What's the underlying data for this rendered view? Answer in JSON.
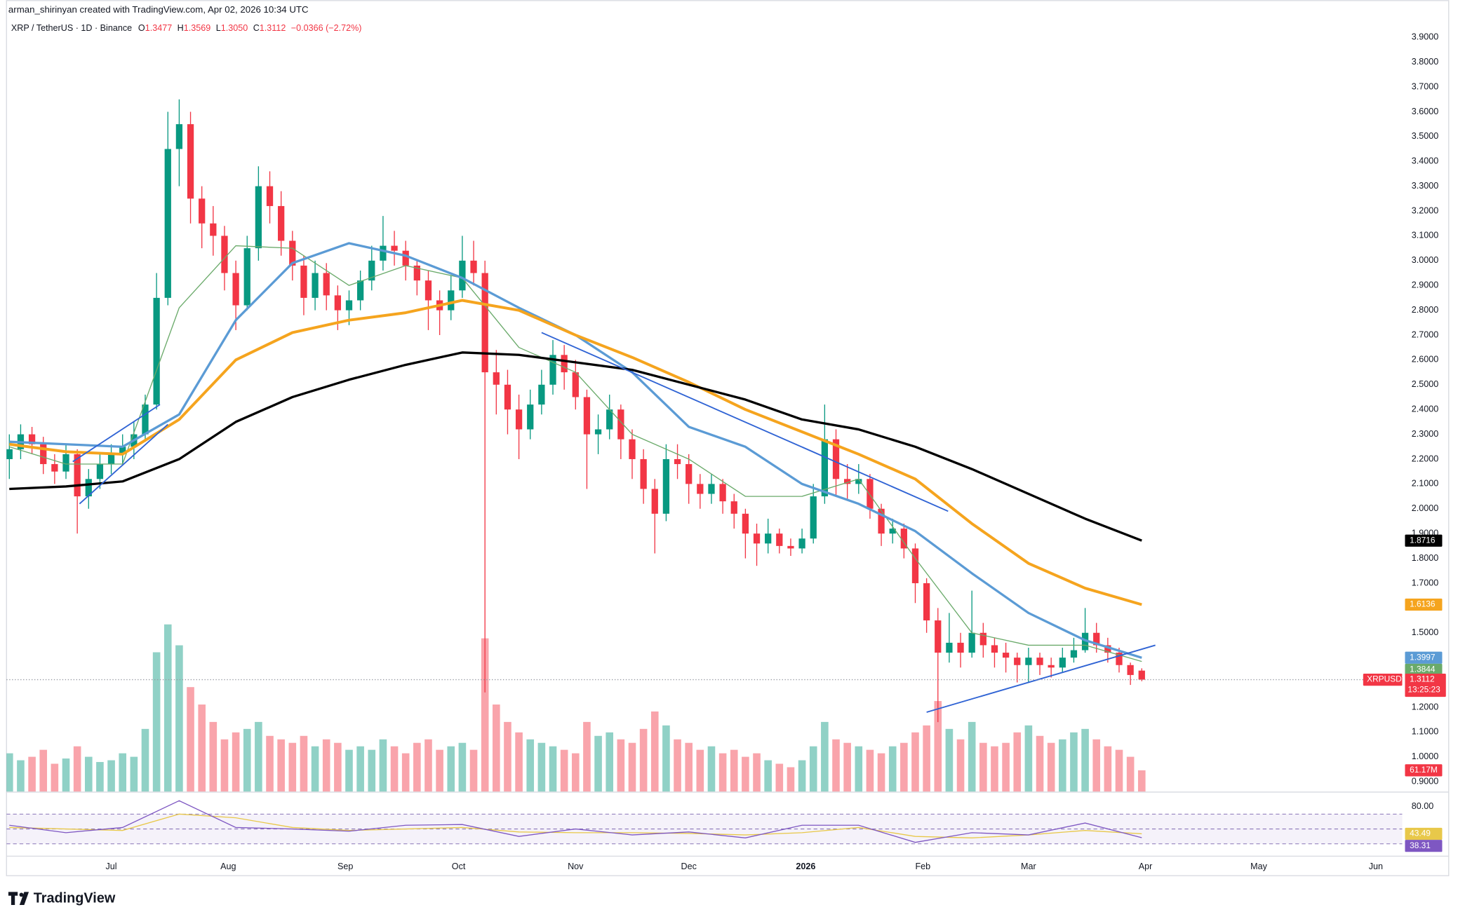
{
  "header": {
    "credit": "arman_shirinyan created with TradingView.com, Apr 02, 2026 10:34 UTC",
    "symbol": "XRP / TetherUS · 1D · Binance",
    "ohlc": [
      {
        "label": "O",
        "value": "1.3477"
      },
      {
        "label": "H",
        "value": "1.3569"
      },
      {
        "label": "L",
        "value": "1.3050"
      },
      {
        "label": "C",
        "value": "1.3112"
      }
    ],
    "change": "−0.0366 (−2.72%)"
  },
  "chart_data": {
    "type": "candlestick",
    "xlim": [
      -0.25,
      123
    ],
    "xticks": [
      {
        "value": 9,
        "label": "Jul"
      },
      {
        "value": 19.33,
        "label": "Aug"
      },
      {
        "value": 29.67,
        "label": "Sep"
      },
      {
        "value": 39.67,
        "label": "Oct"
      },
      {
        "value": 50,
        "label": "Nov"
      },
      {
        "value": 60,
        "label": "Dec"
      },
      {
        "value": 70.33,
        "label": "2026",
        "emphasis": true
      },
      {
        "value": 80.67,
        "label": "Feb"
      },
      {
        "value": 90,
        "label": "Mar"
      },
      {
        "value": 100.33,
        "label": "Apr"
      },
      {
        "value": 110.33,
        "label": "May"
      },
      {
        "value": 120.67,
        "label": "Jun"
      }
    ],
    "ylim": [
      0.86,
      4.05
    ],
    "yticks": [
      {
        "value": 0.9,
        "label": "0.9000"
      },
      {
        "value": 1.0,
        "label": "1.0000"
      },
      {
        "value": 1.1,
        "label": "1.1000"
      },
      {
        "value": 1.2,
        "label": "1.2000"
      },
      {
        "value": 1.3,
        "label": "1.3000"
      },
      {
        "value": 1.4,
        "label": "1.4000"
      },
      {
        "value": 1.5,
        "label": "1.5000"
      },
      {
        "value": 1.6,
        "label": "1.6000"
      },
      {
        "value": 1.7,
        "label": "1.7000"
      },
      {
        "value": 1.8,
        "label": "1.8000"
      },
      {
        "value": 1.9,
        "label": "1.9000"
      },
      {
        "value": 2.0,
        "label": "2.0000"
      },
      {
        "value": 2.1,
        "label": "2.1000"
      },
      {
        "value": 2.2,
        "label": "2.2000"
      },
      {
        "value": 2.3,
        "label": "2.3000"
      },
      {
        "value": 2.4,
        "label": "2.4000"
      },
      {
        "value": 2.5,
        "label": "2.5000"
      },
      {
        "value": 2.6,
        "label": "2.6000"
      },
      {
        "value": 2.7,
        "label": "2.7000"
      },
      {
        "value": 2.8,
        "label": "2.8000"
      },
      {
        "value": 2.9,
        "label": "2.9000"
      },
      {
        "value": 3.0,
        "label": "3.0000"
      },
      {
        "value": 3.1,
        "label": "3.1000"
      },
      {
        "value": 3.2,
        "label": "3.2000"
      },
      {
        "value": 3.3,
        "label": "3.3000"
      },
      {
        "value": 3.4,
        "label": "3.4000"
      },
      {
        "value": 3.5,
        "label": "3.5000"
      },
      {
        "value": 3.6,
        "label": "3.6000"
      },
      {
        "value": 3.7,
        "label": "3.7000"
      },
      {
        "value": 3.8,
        "label": "3.8000"
      },
      {
        "value": 3.9,
        "label": "3.9000"
      }
    ],
    "colors": {
      "up": "#089981",
      "down": "#f23645"
    },
    "candles": [
      [
        2.2,
        2.3,
        2.12,
        2.24
      ],
      [
        2.24,
        2.34,
        2.2,
        2.3
      ],
      [
        2.3,
        2.33,
        2.22,
        2.26
      ],
      [
        2.26,
        2.29,
        2.14,
        2.18
      ],
      [
        2.18,
        2.22,
        2.1,
        2.15
      ],
      [
        2.15,
        2.26,
        2.12,
        2.22
      ],
      [
        2.22,
        2.24,
        1.9,
        2.05
      ],
      [
        2.05,
        2.16,
        2.0,
        2.12
      ],
      [
        2.12,
        2.22,
        2.08,
        2.18
      ],
      [
        2.18,
        2.26,
        2.14,
        2.22
      ],
      [
        2.22,
        2.3,
        2.18,
        2.25
      ],
      [
        2.25,
        2.35,
        2.2,
        2.3
      ],
      [
        2.3,
        2.46,
        2.27,
        2.42
      ],
      [
        2.42,
        2.95,
        2.4,
        2.85
      ],
      [
        2.85,
        3.6,
        2.82,
        3.45
      ],
      [
        3.45,
        3.65,
        3.3,
        3.55
      ],
      [
        3.55,
        3.6,
        3.15,
        3.25
      ],
      [
        3.25,
        3.3,
        3.05,
        3.15
      ],
      [
        3.15,
        3.22,
        3.02,
        3.1
      ],
      [
        3.1,
        3.14,
        2.88,
        2.95
      ],
      [
        2.95,
        3.0,
        2.72,
        2.82
      ],
      [
        2.82,
        3.1,
        2.8,
        3.05
      ],
      [
        3.05,
        3.38,
        3.0,
        3.3
      ],
      [
        3.3,
        3.36,
        3.15,
        3.22
      ],
      [
        3.22,
        3.28,
        3.02,
        3.08
      ],
      [
        3.08,
        3.12,
        2.92,
        2.98
      ],
      [
        2.98,
        3.02,
        2.78,
        2.85
      ],
      [
        2.85,
        3.0,
        2.8,
        2.95
      ],
      [
        2.95,
        2.99,
        2.8,
        2.86
      ],
      [
        2.86,
        2.9,
        2.72,
        2.8
      ],
      [
        2.8,
        2.88,
        2.74,
        2.84
      ],
      [
        2.84,
        2.96,
        2.8,
        2.92
      ],
      [
        2.92,
        3.06,
        2.88,
        3.0
      ],
      [
        3.0,
        3.18,
        2.96,
        3.06
      ],
      [
        3.06,
        3.12,
        2.98,
        3.04
      ],
      [
        3.04,
        3.08,
        2.92,
        2.98
      ],
      [
        2.98,
        3.0,
        2.86,
        2.92
      ],
      [
        2.92,
        2.96,
        2.72,
        2.84
      ],
      [
        2.84,
        2.88,
        2.7,
        2.8
      ],
      [
        2.8,
        2.94,
        2.76,
        2.88
      ],
      [
        2.88,
        3.1,
        2.85,
        3.0
      ],
      [
        3.0,
        3.08,
        2.9,
        2.95
      ],
      [
        2.95,
        3.0,
        1.26,
        2.55
      ],
      [
        2.55,
        2.64,
        2.38,
        2.5
      ],
      [
        2.5,
        2.56,
        2.3,
        2.4
      ],
      [
        2.4,
        2.46,
        2.2,
        2.32
      ],
      [
        2.32,
        2.48,
        2.28,
        2.42
      ],
      [
        2.42,
        2.56,
        2.38,
        2.5
      ],
      [
        2.5,
        2.68,
        2.46,
        2.62
      ],
      [
        2.62,
        2.66,
        2.48,
        2.55
      ],
      [
        2.55,
        2.6,
        2.4,
        2.45
      ],
      [
        2.45,
        2.48,
        2.08,
        2.3
      ],
      [
        2.3,
        2.38,
        2.22,
        2.32
      ],
      [
        2.32,
        2.46,
        2.28,
        2.4
      ],
      [
        2.4,
        2.42,
        2.2,
        2.28
      ],
      [
        2.28,
        2.32,
        2.12,
        2.2
      ],
      [
        2.2,
        2.24,
        2.02,
        2.08
      ],
      [
        2.08,
        2.12,
        1.82,
        1.98
      ],
      [
        1.98,
        2.26,
        1.95,
        2.2
      ],
      [
        2.2,
        2.26,
        2.12,
        2.18
      ],
      [
        2.18,
        2.22,
        2.02,
        2.1
      ],
      [
        2.1,
        2.14,
        2.0,
        2.06
      ],
      [
        2.06,
        2.14,
        2.02,
        2.1
      ],
      [
        2.1,
        2.12,
        1.98,
        2.03
      ],
      [
        2.03,
        2.06,
        1.92,
        1.98
      ],
      [
        1.98,
        2.0,
        1.8,
        1.9
      ],
      [
        1.9,
        1.94,
        1.77,
        1.86
      ],
      [
        1.86,
        1.96,
        1.82,
        1.9
      ],
      [
        1.9,
        1.92,
        1.82,
        1.85
      ],
      [
        1.85,
        1.88,
        1.81,
        1.84
      ],
      [
        1.84,
        1.92,
        1.82,
        1.88
      ],
      [
        1.88,
        2.1,
        1.86,
        2.05
      ],
      [
        2.05,
        2.42,
        2.02,
        2.28
      ],
      [
        2.28,
        2.32,
        2.05,
        2.12
      ],
      [
        2.12,
        2.18,
        2.04,
        2.1
      ],
      [
        2.1,
        2.18,
        2.06,
        2.12
      ],
      [
        2.12,
        2.14,
        1.96,
        2.0
      ],
      [
        2.0,
        2.02,
        1.85,
        1.9
      ],
      [
        1.9,
        1.96,
        1.86,
        1.92
      ],
      [
        1.92,
        1.94,
        1.8,
        1.84
      ],
      [
        1.84,
        1.86,
        1.62,
        1.7
      ],
      [
        1.7,
        1.72,
        1.5,
        1.55
      ],
      [
        1.55,
        1.6,
        1.14,
        1.42
      ],
      [
        1.42,
        1.58,
        1.38,
        1.46
      ],
      [
        1.46,
        1.5,
        1.36,
        1.42
      ],
      [
        1.42,
        1.67,
        1.4,
        1.5
      ],
      [
        1.5,
        1.54,
        1.4,
        1.45
      ],
      [
        1.45,
        1.48,
        1.36,
        1.42
      ],
      [
        1.42,
        1.46,
        1.34,
        1.4
      ],
      [
        1.4,
        1.42,
        1.3,
        1.37
      ],
      [
        1.37,
        1.44,
        1.3,
        1.4
      ],
      [
        1.4,
        1.42,
        1.33,
        1.37
      ],
      [
        1.37,
        1.4,
        1.32,
        1.36
      ],
      [
        1.36,
        1.44,
        1.34,
        1.4
      ],
      [
        1.4,
        1.48,
        1.38,
        1.43
      ],
      [
        1.43,
        1.6,
        1.42,
        1.5
      ],
      [
        1.5,
        1.54,
        1.42,
        1.45
      ],
      [
        1.45,
        1.48,
        1.38,
        1.42
      ],
      [
        1.42,
        1.44,
        1.34,
        1.37
      ],
      [
        1.37,
        1.38,
        1.29,
        1.33
      ],
      [
        1.3477,
        1.3569,
        1.305,
        1.3112
      ]
    ],
    "volume": {
      "ylim": [
        0,
        600
      ],
      "last_label": "61.17M",
      "values": [
        110,
        90,
        100,
        120,
        80,
        95,
        130,
        100,
        85,
        90,
        110,
        100,
        180,
        400,
        480,
        420,
        300,
        250,
        200,
        150,
        170,
        180,
        200,
        160,
        150,
        140,
        160,
        130,
        150,
        140,
        120,
        130,
        120,
        150,
        130,
        110,
        140,
        150,
        120,
        130,
        140,
        120,
        440,
        250,
        200,
        170,
        150,
        140,
        130,
        120,
        110,
        200,
        160,
        170,
        150,
        140,
        180,
        230,
        190,
        150,
        140,
        120,
        130,
        110,
        120,
        100,
        110,
        90,
        80,
        70,
        90,
        130,
        200,
        150,
        140,
        130,
        120,
        110,
        130,
        140,
        170,
        190,
        260,
        180,
        150,
        200,
        140,
        130,
        140,
        170,
        190,
        160,
        140,
        150,
        170,
        180,
        150,
        130,
        120,
        100,
        61.17
      ]
    },
    "moving_averages": {
      "x": [
        0,
        5,
        10,
        15,
        20,
        25,
        30,
        35,
        40,
        45,
        50,
        55,
        60,
        65,
        70,
        75,
        80,
        85,
        90,
        95,
        100
      ],
      "series": [
        {
          "color": "#6aaa6a",
          "width": 1,
          "values": [
            2.25,
            2.18,
            2.18,
            2.81,
            3.06,
            3.05,
            2.9,
            2.98,
            2.93,
            2.65,
            2.55,
            2.3,
            2.2,
            2.05,
            2.05,
            2.12,
            1.8,
            1.5,
            1.45,
            1.45,
            1.3844
          ]
        },
        {
          "color": "#5b9bd5",
          "width": 2.5,
          "values": [
            2.27,
            2.26,
            2.25,
            2.38,
            2.76,
            2.99,
            3.07,
            3.02,
            2.93,
            2.81,
            2.7,
            2.55,
            2.33,
            2.25,
            2.1,
            2.02,
            1.91,
            1.74,
            1.58,
            1.47,
            1.3997
          ]
        },
        {
          "color": "#f5a41e",
          "width": 3,
          "values": [
            2.26,
            2.23,
            2.22,
            2.36,
            2.6,
            2.71,
            2.76,
            2.79,
            2.84,
            2.8,
            2.7,
            2.61,
            2.51,
            2.4,
            2.31,
            2.22,
            2.12,
            1.94,
            1.78,
            1.68,
            1.6136
          ]
        },
        {
          "color": "#000000",
          "width": 2.5,
          "values": [
            2.08,
            2.09,
            2.11,
            2.2,
            2.35,
            2.45,
            2.52,
            2.58,
            2.63,
            2.62,
            2.59,
            2.56,
            2.5,
            2.44,
            2.36,
            2.32,
            2.25,
            2.16,
            2.06,
            1.96,
            1.8716
          ]
        }
      ]
    },
    "trendlines": {
      "color": "#2f63d4",
      "lines": [
        [
          6.2,
          2.02,
          14.0,
          2.34
        ],
        [
          5.6,
          2.19,
          13.3,
          2.42
        ],
        [
          47.0,
          2.71,
          82.9,
          1.99
        ],
        [
          81.0,
          1.18,
          101.2,
          1.45
        ]
      ]
    },
    "price_line": {
      "symbol": "XRPUSDT",
      "value": 1.3112,
      "countdown": "13:25:23"
    },
    "rsi": {
      "ylim": [
        14,
        94
      ],
      "yticks": [
        {
          "value": 80,
          "label": "80.00"
        }
      ],
      "bands": [
        30,
        50,
        70
      ],
      "x": [
        0,
        5,
        10,
        15,
        20,
        25,
        30,
        35,
        40,
        45,
        50,
        55,
        60,
        65,
        70,
        75,
        80,
        85,
        90,
        95,
        100
      ],
      "series": [
        {
          "color": "#e8c84a",
          "values": [
            52,
            50,
            48,
            70,
            65,
            52,
            48,
            50,
            52,
            46,
            45,
            45,
            44,
            42,
            45,
            52,
            40,
            38,
            42,
            48,
            43.49
          ]
        },
        {
          "color": "#7e57c2",
          "values": [
            55,
            45,
            52,
            88,
            52,
            50,
            47,
            55,
            56,
            40,
            50,
            42,
            46,
            38,
            55,
            55,
            32,
            45,
            42,
            58,
            38.31
          ]
        }
      ]
    }
  },
  "footer": {
    "brand": "TradingView"
  }
}
